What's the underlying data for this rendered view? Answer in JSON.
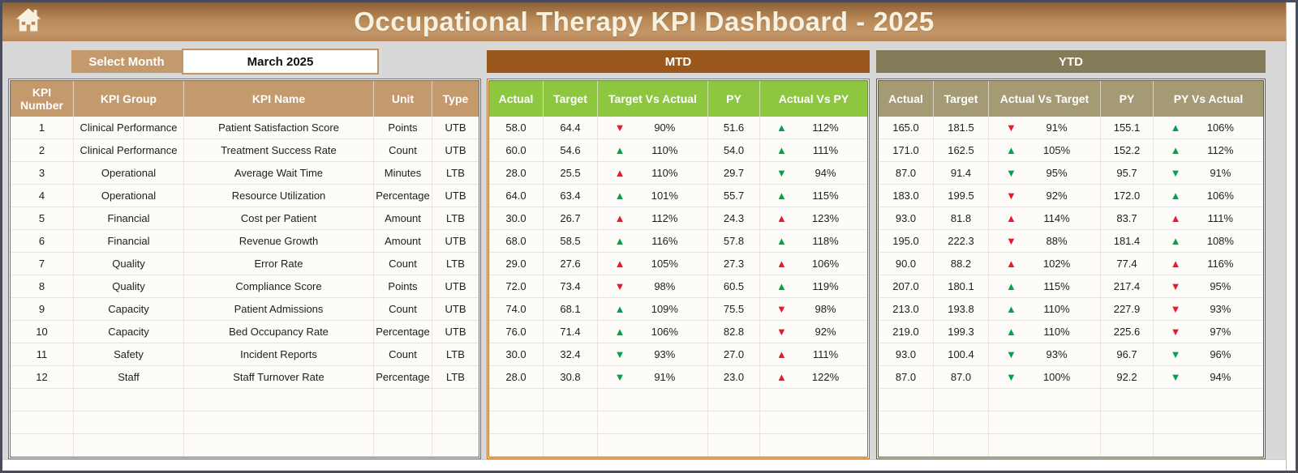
{
  "window": {
    "title": "Occupational Therapy KPI Dashboard - 2025"
  },
  "icons": {
    "home": "home-icon"
  },
  "colors": {
    "header_gradient_brown": "#B5875A",
    "tan": "#C49A6C",
    "mtd_brown": "#9A571B",
    "ytd_olive": "#847C58",
    "header_green": "#8DC63F",
    "header_khaki": "#A49A74",
    "up_good_green": "#00A24C",
    "down_bad_red": "#E8192C"
  },
  "controls": {
    "select_month_label": "Select Month",
    "select_month_value": "March 2025"
  },
  "sections": {
    "mtd_label": "MTD",
    "ytd_label": "YTD"
  },
  "table": {
    "left_headers": [
      "KPI Number",
      "KPI Group",
      "KPI Name",
      "Unit",
      "Type"
    ],
    "mtd_headers": [
      "Actual",
      "Target",
      "Target Vs Actual",
      "PY",
      "Actual Vs PY"
    ],
    "ytd_headers": [
      "Actual",
      "Target",
      "Actual Vs Target",
      "PY",
      "PY Vs Actual"
    ],
    "empty_row_count": 3,
    "rows": [
      {
        "num": "1",
        "group": "Clinical Performance",
        "name": "Patient Satisfaction Score",
        "unit": "Points",
        "type": "UTB",
        "mtd": {
          "actual": "58.0",
          "target": "64.4",
          "tva": {
            "pct": "90%",
            "dir": "down",
            "color": "red"
          },
          "py": "51.6",
          "avp": {
            "pct": "112%",
            "dir": "up",
            "color": "green"
          }
        },
        "ytd": {
          "actual": "165.0",
          "target": "181.5",
          "avt": {
            "pct": "91%",
            "dir": "down",
            "color": "red"
          },
          "py": "155.1",
          "pva": {
            "pct": "106%",
            "dir": "up",
            "color": "green"
          }
        }
      },
      {
        "num": "2",
        "group": "Clinical Performance",
        "name": "Treatment Success Rate",
        "unit": "Count",
        "type": "UTB",
        "mtd": {
          "actual": "60.0",
          "target": "54.6",
          "tva": {
            "pct": "110%",
            "dir": "up",
            "color": "green"
          },
          "py": "54.0",
          "avp": {
            "pct": "111%",
            "dir": "up",
            "color": "green"
          }
        },
        "ytd": {
          "actual": "171.0",
          "target": "162.5",
          "avt": {
            "pct": "105%",
            "dir": "up",
            "color": "green"
          },
          "py": "152.2",
          "pva": {
            "pct": "112%",
            "dir": "up",
            "color": "green"
          }
        }
      },
      {
        "num": "3",
        "group": "Operational",
        "name": "Average Wait Time",
        "unit": "Minutes",
        "type": "LTB",
        "mtd": {
          "actual": "28.0",
          "target": "25.5",
          "tva": {
            "pct": "110%",
            "dir": "up",
            "color": "red"
          },
          "py": "29.7",
          "avp": {
            "pct": "94%",
            "dir": "down",
            "color": "green"
          }
        },
        "ytd": {
          "actual": "87.0",
          "target": "91.4",
          "avt": {
            "pct": "95%",
            "dir": "down",
            "color": "green"
          },
          "py": "95.7",
          "pva": {
            "pct": "91%",
            "dir": "down",
            "color": "green"
          }
        }
      },
      {
        "num": "4",
        "group": "Operational",
        "name": "Resource Utilization",
        "unit": "Percentage",
        "type": "UTB",
        "mtd": {
          "actual": "64.0",
          "target": "63.4",
          "tva": {
            "pct": "101%",
            "dir": "up",
            "color": "green"
          },
          "py": "55.7",
          "avp": {
            "pct": "115%",
            "dir": "up",
            "color": "green"
          }
        },
        "ytd": {
          "actual": "183.0",
          "target": "199.5",
          "avt": {
            "pct": "92%",
            "dir": "down",
            "color": "red"
          },
          "py": "172.0",
          "pva": {
            "pct": "106%",
            "dir": "up",
            "color": "green"
          }
        }
      },
      {
        "num": "5",
        "group": "Financial",
        "name": "Cost per Patient",
        "unit": "Amount",
        "type": "LTB",
        "mtd": {
          "actual": "30.0",
          "target": "26.7",
          "tva": {
            "pct": "112%",
            "dir": "up",
            "color": "red"
          },
          "py": "24.3",
          "avp": {
            "pct": "123%",
            "dir": "up",
            "color": "red"
          }
        },
        "ytd": {
          "actual": "93.0",
          "target": "81.8",
          "avt": {
            "pct": "114%",
            "dir": "up",
            "color": "red"
          },
          "py": "83.7",
          "pva": {
            "pct": "111%",
            "dir": "up",
            "color": "red"
          }
        }
      },
      {
        "num": "6",
        "group": "Financial",
        "name": "Revenue Growth",
        "unit": "Amount",
        "type": "UTB",
        "mtd": {
          "actual": "68.0",
          "target": "58.5",
          "tva": {
            "pct": "116%",
            "dir": "up",
            "color": "green"
          },
          "py": "57.8",
          "avp": {
            "pct": "118%",
            "dir": "up",
            "color": "green"
          }
        },
        "ytd": {
          "actual": "195.0",
          "target": "222.3",
          "avt": {
            "pct": "88%",
            "dir": "down",
            "color": "red"
          },
          "py": "181.4",
          "pva": {
            "pct": "108%",
            "dir": "up",
            "color": "green"
          }
        }
      },
      {
        "num": "7",
        "group": "Quality",
        "name": "Error Rate",
        "unit": "Count",
        "type": "LTB",
        "mtd": {
          "actual": "29.0",
          "target": "27.6",
          "tva": {
            "pct": "105%",
            "dir": "up",
            "color": "red"
          },
          "py": "27.3",
          "avp": {
            "pct": "106%",
            "dir": "up",
            "color": "red"
          }
        },
        "ytd": {
          "actual": "90.0",
          "target": "88.2",
          "avt": {
            "pct": "102%",
            "dir": "up",
            "color": "red"
          },
          "py": "77.4",
          "pva": {
            "pct": "116%",
            "dir": "up",
            "color": "red"
          }
        }
      },
      {
        "num": "8",
        "group": "Quality",
        "name": "Compliance Score",
        "unit": "Points",
        "type": "UTB",
        "mtd": {
          "actual": "72.0",
          "target": "73.4",
          "tva": {
            "pct": "98%",
            "dir": "down",
            "color": "red"
          },
          "py": "60.5",
          "avp": {
            "pct": "119%",
            "dir": "up",
            "color": "green"
          }
        },
        "ytd": {
          "actual": "207.0",
          "target": "180.1",
          "avt": {
            "pct": "115%",
            "dir": "up",
            "color": "green"
          },
          "py": "217.4",
          "pva": {
            "pct": "95%",
            "dir": "down",
            "color": "red"
          }
        }
      },
      {
        "num": "9",
        "group": "Capacity",
        "name": "Patient Admissions",
        "unit": "Count",
        "type": "UTB",
        "mtd": {
          "actual": "74.0",
          "target": "68.1",
          "tva": {
            "pct": "109%",
            "dir": "up",
            "color": "green"
          },
          "py": "75.5",
          "avp": {
            "pct": "98%",
            "dir": "down",
            "color": "red"
          }
        },
        "ytd": {
          "actual": "213.0",
          "target": "193.8",
          "avt": {
            "pct": "110%",
            "dir": "up",
            "color": "green"
          },
          "py": "227.9",
          "pva": {
            "pct": "93%",
            "dir": "down",
            "color": "red"
          }
        }
      },
      {
        "num": "10",
        "group": "Capacity",
        "name": "Bed Occupancy Rate",
        "unit": "Percentage",
        "type": "UTB",
        "mtd": {
          "actual": "76.0",
          "target": "71.4",
          "tva": {
            "pct": "106%",
            "dir": "up",
            "color": "green"
          },
          "py": "82.8",
          "avp": {
            "pct": "92%",
            "dir": "down",
            "color": "red"
          }
        },
        "ytd": {
          "actual": "219.0",
          "target": "199.3",
          "avt": {
            "pct": "110%",
            "dir": "up",
            "color": "green"
          },
          "py": "225.6",
          "pva": {
            "pct": "97%",
            "dir": "down",
            "color": "red"
          }
        }
      },
      {
        "num": "11",
        "group": "Safety",
        "name": "Incident Reports",
        "unit": "Count",
        "type": "LTB",
        "mtd": {
          "actual": "30.0",
          "target": "32.4",
          "tva": {
            "pct": "93%",
            "dir": "down",
            "color": "green"
          },
          "py": "27.0",
          "avp": {
            "pct": "111%",
            "dir": "up",
            "color": "red"
          }
        },
        "ytd": {
          "actual": "93.0",
          "target": "100.4",
          "avt": {
            "pct": "93%",
            "dir": "down",
            "color": "green"
          },
          "py": "96.7",
          "pva": {
            "pct": "96%",
            "dir": "down",
            "color": "green"
          }
        }
      },
      {
        "num": "12",
        "group": "Staff",
        "name": "Staff Turnover Rate",
        "unit": "Percentage",
        "type": "LTB",
        "mtd": {
          "actual": "28.0",
          "target": "30.8",
          "tva": {
            "pct": "91%",
            "dir": "down",
            "color": "green"
          },
          "py": "23.0",
          "avp": {
            "pct": "122%",
            "dir": "up",
            "color": "red"
          }
        },
        "ytd": {
          "actual": "87.0",
          "target": "87.0",
          "avt": {
            "pct": "100%",
            "dir": "down",
            "color": "green"
          },
          "py": "92.2",
          "pva": {
            "pct": "94%",
            "dir": "down",
            "color": "green"
          }
        }
      }
    ]
  }
}
